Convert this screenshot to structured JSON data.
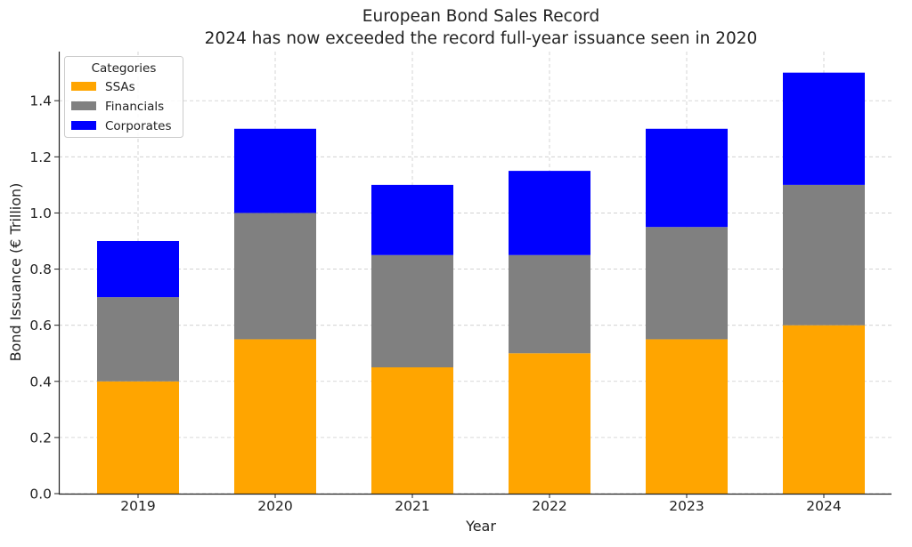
{
  "chart_data": {
    "type": "bar",
    "stacked": true,
    "title": "European Bond Sales Record",
    "subtitle": "2024 has now exceeded the record full-year issuance seen in 2020",
    "xlabel": "Year",
    "ylabel": "Bond Issuance (€ Trillion)",
    "categories": [
      "2019",
      "2020",
      "2021",
      "2022",
      "2023",
      "2024"
    ],
    "series": [
      {
        "name": "SSAs",
        "color": "#FFA500",
        "values": [
          0.4,
          0.55,
          0.45,
          0.5,
          0.55,
          0.6
        ]
      },
      {
        "name": "Financials",
        "color": "#808080",
        "values": [
          0.3,
          0.45,
          0.4,
          0.35,
          0.4,
          0.5
        ]
      },
      {
        "name": "Corporates",
        "color": "#0000FF",
        "values": [
          0.2,
          0.3,
          0.25,
          0.3,
          0.35,
          0.4
        ]
      }
    ],
    "ylim": [
      0,
      1.575
    ],
    "yticks": [
      "0.0",
      "0.2",
      "0.4",
      "0.6",
      "0.8",
      "1.0",
      "1.2",
      "1.4"
    ],
    "grid": true,
    "legend": {
      "title": "Categories",
      "position": "top-left"
    }
  }
}
